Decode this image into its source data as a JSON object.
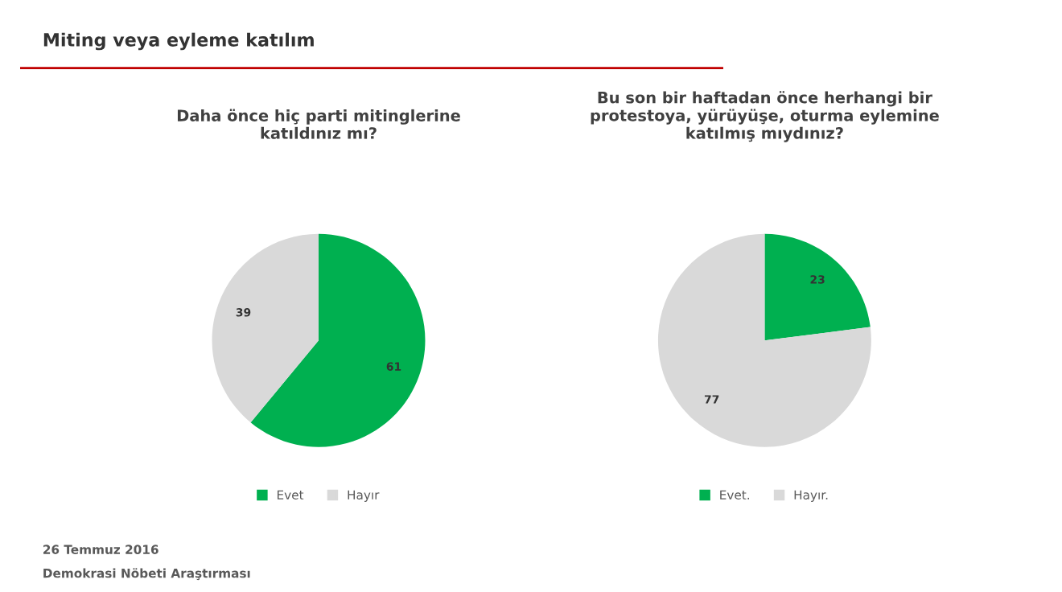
{
  "chart_data": [
    {
      "type": "pie",
      "title": "Daha önce hiç parti mitinglerine\nkatıldınız mı?",
      "categories": [
        "Evet",
        "Hayır"
      ],
      "values": [
        61,
        39
      ],
      "colors": [
        "#00b050",
        "#d9d9d9"
      ],
      "data_labels": true,
      "legend": "bottom",
      "annotations": [
        "Miting veya eyleme katılım",
        "26 Temmuz 2016",
        "Demokrasi Nöbeti Araştırması"
      ]
    },
    {
      "type": "pie",
      "title": "Bu son bir haftadan önce herhangi bir\nprotestoya, yürüyüşe, oturma eylemine\nkatılmış mıydınız?",
      "categories": [
        "Evet.",
        "Hayır."
      ],
      "values": [
        23,
        77
      ],
      "colors": [
        "#00b050",
        "#d9d9d9"
      ],
      "data_labels": true,
      "legend": "bottom"
    }
  ]
}
